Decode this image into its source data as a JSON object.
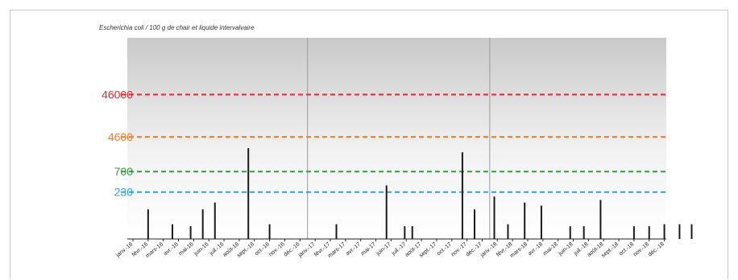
{
  "chart_data": {
    "type": "bar",
    "title": "Escherichia coli / 100 g de chair et liquide intervalvaire",
    "xlabel": "",
    "ylabel": "",
    "categories": [
      "janv.-16",
      "févr.-16",
      "mars-16",
      "avr.-16",
      "mai-16",
      "juin-16",
      "juil.-16",
      "août-16",
      "sept.-16",
      "oct.-16",
      "nov.-16",
      "déc.-16",
      "janv.-17",
      "févr.-17",
      "mars-17",
      "avr.-17",
      "mai-17",
      "juin-17",
      "juil.-17",
      "août-17",
      "sept.-17",
      "oct.-17",
      "nov.-17",
      "déc.-17",
      "janv.-18",
      "févr.-18",
      "mars-18",
      "avr.-18",
      "mai-18",
      "juin-18",
      "juil.-18",
      "août-18",
      "sept.-18",
      "oct.-18",
      "nov.-18",
      "déc.-18"
    ],
    "bars": [
      {
        "x": 1.0,
        "value": 90
      },
      {
        "x": 2.6,
        "value": 40
      },
      {
        "x": 3.8,
        "value": 36
      },
      {
        "x": 4.6,
        "value": 90
      },
      {
        "x": 5.4,
        "value": 130
      },
      {
        "x": 7.6,
        "value": 2500
      },
      {
        "x": 9.0,
        "value": 40
      },
      {
        "x": 13.4,
        "value": 40
      },
      {
        "x": 16.7,
        "value": 330
      },
      {
        "x": 17.9,
        "value": 36
      },
      {
        "x": 18.4,
        "value": 36
      },
      {
        "x": 21.7,
        "value": 2000
      },
      {
        "x": 22.5,
        "value": 90
      },
      {
        "x": 23.8,
        "value": 180
      },
      {
        "x": 24.7,
        "value": 40
      },
      {
        "x": 25.8,
        "value": 130
      },
      {
        "x": 26.9,
        "value": 110
      },
      {
        "x": 28.8,
        "value": 36
      },
      {
        "x": 29.7,
        "value": 36
      },
      {
        "x": 30.8,
        "value": 150
      },
      {
        "x": 33.0,
        "value": 36
      },
      {
        "x": 34.0,
        "value": 36
      },
      {
        "x": 35.0,
        "value": 40
      },
      {
        "x": 36.0,
        "value": 40
      },
      {
        "x": 36.8,
        "value": 40
      }
    ],
    "thresholds": [
      {
        "label": "46000",
        "value": 46000,
        "color": "#e8262f"
      },
      {
        "label": "4600",
        "value": 4600,
        "color": "#f07d2a"
      },
      {
        "label": "700",
        "value": 700,
        "color": "#2e9e3e"
      },
      {
        "label": "230",
        "value": 230,
        "color": "#2fa3de"
      }
    ],
    "y_scale": "log",
    "ylim": [
      18,
      1000000
    ],
    "year_separators_after_index": [
      11,
      23
    ],
    "grid": false,
    "legend": "none"
  }
}
